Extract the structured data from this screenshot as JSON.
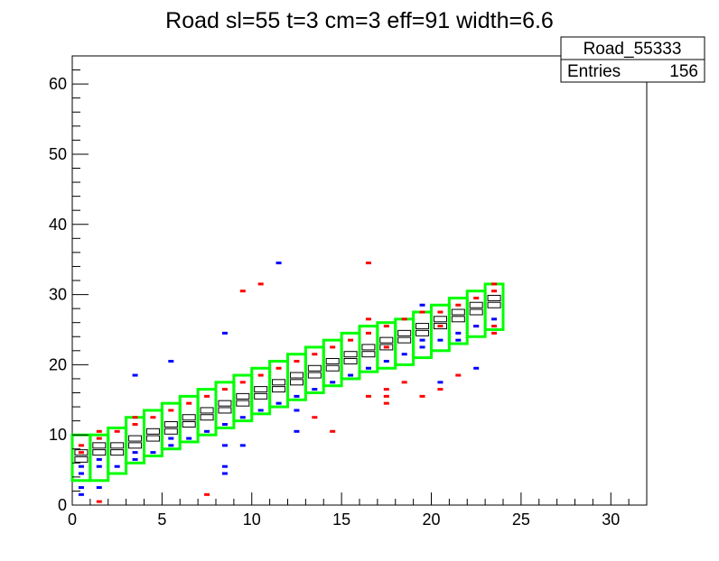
{
  "chart_data": {
    "type": "heatmap",
    "title": "Road sl=55 t=3 cm=3 eff=91 width=6.6",
    "xlabel": "",
    "ylabel": "",
    "xlim": [
      0,
      32
    ],
    "ylim": [
      0,
      64
    ],
    "xticks": [
      "0",
      "5",
      "10",
      "15",
      "20",
      "25",
      "30"
    ],
    "yticks": [
      "0",
      "10",
      "20",
      "30",
      "40",
      "50",
      "60"
    ],
    "grid": false,
    "stats_box": {
      "name": "Road_55333",
      "entries_label": "Entries",
      "entries_value": "156"
    },
    "road_column_lows": [
      3.5,
      3.5,
      4.5,
      6,
      7,
      8,
      9,
      10,
      11,
      12,
      13,
      14,
      15,
      16,
      17,
      18,
      19,
      19.5,
      20,
      21,
      22,
      23,
      24,
      25
    ],
    "road_box_height": 6.5,
    "hits": {
      "red": [
        [
          0.5,
          8.5
        ],
        [
          0.5,
          7.5
        ],
        [
          1.5,
          9.5
        ],
        [
          1.5,
          10.5
        ],
        [
          2.5,
          10.5
        ],
        [
          3.5,
          12.5
        ],
        [
          3.5,
          11.5
        ],
        [
          4.5,
          12.5
        ],
        [
          5.5,
          13.5
        ],
        [
          6.5,
          14.5
        ],
        [
          7.5,
          15.5
        ],
        [
          8.5,
          16.5
        ],
        [
          9.5,
          17.5
        ],
        [
          10.5,
          18.5
        ],
        [
          11.5,
          19.5
        ],
        [
          12.5,
          20.5
        ],
        [
          13.5,
          21.5
        ],
        [
          14.5,
          22.5
        ],
        [
          15.5,
          23.5
        ],
        [
          16.5,
          24.5
        ],
        [
          17.5,
          25.5
        ],
        [
          18.5,
          26.5
        ],
        [
          19.5,
          27.5
        ],
        [
          20.5,
          27.5
        ],
        [
          21.5,
          28.5
        ],
        [
          22.5,
          29.5
        ],
        [
          23.5,
          30.5
        ],
        [
          23.5,
          31.5
        ],
        [
          9.5,
          30.5
        ],
        [
          10.5,
          31.5
        ],
        [
          16.5,
          34.5
        ],
        [
          16.5,
          26.5
        ],
        [
          13.5,
          12.5
        ],
        [
          14.5,
          10.5
        ],
        [
          16.5,
          15.5
        ],
        [
          17.5,
          15.5
        ],
        [
          17.5,
          16.5
        ],
        [
          17.5,
          14.5
        ],
        [
          19.5,
          15.5
        ],
        [
          20.5,
          16.5
        ],
        [
          18.5,
          17.5
        ],
        [
          7.5,
          1.5
        ],
        [
          1.5,
          0.5
        ],
        [
          21.5,
          18.5
        ],
        [
          22.5,
          25.5
        ],
        [
          23.5,
          24.5
        ],
        [
          23.5,
          25.5
        ],
        [
          20.5,
          25.5
        ],
        [
          17.5,
          22.5
        ]
      ],
      "blue": [
        [
          0.5,
          4.5
        ],
        [
          0.5,
          5.5
        ],
        [
          0.5,
          2.5
        ],
        [
          0.5,
          1.5
        ],
        [
          1.5,
          5.5
        ],
        [
          1.5,
          2.5
        ],
        [
          1.5,
          6.5
        ],
        [
          2.5,
          5.5
        ],
        [
          3.5,
          7.5
        ],
        [
          3.5,
          6.5
        ],
        [
          4.5,
          7.5
        ],
        [
          5.5,
          8.5
        ],
        [
          5.5,
          9.5
        ],
        [
          6.5,
          9.5
        ],
        [
          7.5,
          10.5
        ],
        [
          8.5,
          11.5
        ],
        [
          9.5,
          12.5
        ],
        [
          10.5,
          13.5
        ],
        [
          11.5,
          14.5
        ],
        [
          12.5,
          15.5
        ],
        [
          13.5,
          16.5
        ],
        [
          14.5,
          17.5
        ],
        [
          15.5,
          18.5
        ],
        [
          16.5,
          19.5
        ],
        [
          17.5,
          20.5
        ],
        [
          18.5,
          21.5
        ],
        [
          19.5,
          22.5
        ],
        [
          20.5,
          23.5
        ],
        [
          21.5,
          24.5
        ],
        [
          22.5,
          25.5
        ],
        [
          23.5,
          26.5
        ],
        [
          3.5,
          18.5
        ],
        [
          5.5,
          20.5
        ],
        [
          8.5,
          24.5
        ],
        [
          11.5,
          34.5
        ],
        [
          8.5,
          8.5
        ],
        [
          9.5,
          8.5
        ],
        [
          8.5,
          5.5
        ],
        [
          8.5,
          4.5
        ],
        [
          12.5,
          10.5
        ],
        [
          12.5,
          13.5
        ],
        [
          20.5,
          17.5
        ],
        [
          22.5,
          19.5
        ],
        [
          21.5,
          23.5
        ],
        [
          19.5,
          23.5
        ],
        [
          19.5,
          28.5
        ]
      ],
      "white": [
        [
          0.5,
          6.5
        ],
        [
          0.5,
          7.5
        ],
        [
          1.5,
          7.5
        ],
        [
          1.5,
          8.5
        ],
        [
          2.5,
          7.5
        ],
        [
          2.5,
          8.5
        ],
        [
          3.5,
          9.5
        ],
        [
          3.5,
          8.5
        ],
        [
          4.5,
          9.5
        ],
        [
          4.5,
          10.5
        ],
        [
          5.5,
          10.5
        ],
        [
          5.5,
          11.5
        ],
        [
          6.5,
          11.5
        ],
        [
          6.5,
          12.5
        ],
        [
          7.5,
          12.5
        ],
        [
          7.5,
          13.5
        ],
        [
          8.5,
          13.5
        ],
        [
          8.5,
          14.5
        ],
        [
          9.5,
          14.5
        ],
        [
          9.5,
          15.5
        ],
        [
          10.5,
          15.5
        ],
        [
          10.5,
          16.5
        ],
        [
          11.5,
          16.5
        ],
        [
          11.5,
          17.5
        ],
        [
          12.5,
          17.5
        ],
        [
          12.5,
          18.5
        ],
        [
          13.5,
          18.5
        ],
        [
          13.5,
          19.5
        ],
        [
          14.5,
          19.5
        ],
        [
          14.5,
          20.5
        ],
        [
          15.5,
          20.5
        ],
        [
          15.5,
          21.5
        ],
        [
          16.5,
          21.5
        ],
        [
          16.5,
          22.5
        ],
        [
          17.5,
          22.5
        ],
        [
          17.5,
          23.5
        ],
        [
          18.5,
          23.5
        ],
        [
          18.5,
          24.5
        ],
        [
          19.5,
          24.5
        ],
        [
          19.5,
          25.5
        ],
        [
          20.5,
          25.5
        ],
        [
          20.5,
          26.5
        ],
        [
          21.5,
          26.5
        ],
        [
          21.5,
          27.5
        ],
        [
          22.5,
          27.5
        ],
        [
          22.5,
          28.5
        ],
        [
          23.5,
          28.5
        ],
        [
          23.5,
          29.5
        ]
      ]
    },
    "colors": {
      "road": "#00ff00",
      "red_hits": "#ff0000",
      "blue_hits": "#0000ff",
      "overlap": "#ffffff",
      "frame": "#000000"
    }
  }
}
